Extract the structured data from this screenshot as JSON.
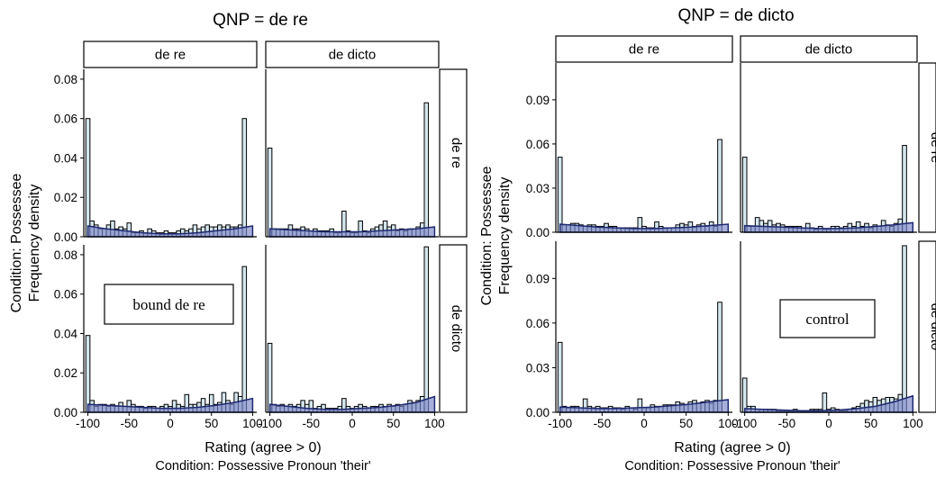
{
  "chart_data": [
    {
      "type": "bar",
      "title": "QNP = de re",
      "xlabel": "Rating (agree > 0)",
      "xlabel2": "Condition: Possessive Pronoun 'their'",
      "ylabel": "Condition: Possessee",
      "ylabel2": "Frequency density",
      "col_strips": [
        "de re",
        "de dicto"
      ],
      "row_strips": [
        "de re",
        "de dicto"
      ],
      "x_ticks": [
        "-100",
        "-50",
        "0",
        "50",
        "100"
      ],
      "x_tick_values": [
        -100,
        -50,
        0,
        50,
        100
      ],
      "xlim": [
        -105,
        105
      ],
      "y_ticks": [
        "0.00",
        "0.02",
        "0.04",
        "0.06",
        "0.08"
      ],
      "y_tick_values": [
        0,
        0.02,
        0.04,
        0.06,
        0.08
      ],
      "ylim": [
        0,
        0.085
      ],
      "grid": false,
      "annotation": {
        "text": "bound de re",
        "panel": "row 2, column 1"
      },
      "bin_width": 5,
      "panels": [
        {
          "row": "de re",
          "col": "de re",
          "values": [
            0.06,
            0.008,
            0.006,
            0.004,
            0.004,
            0.006,
            0.008,
            0.004,
            0.005,
            0.004,
            0.007,
            0.002,
            0.002,
            0.003,
            0.002,
            0.004,
            0.003,
            0.002,
            0.002,
            0.003,
            0.002,
            0.002,
            0.003,
            0.004,
            0.003,
            0.004,
            0.006,
            0.004,
            0.005,
            0.006,
            0.005,
            0.005,
            0.006,
            0.005,
            0.006,
            0.005,
            0.005,
            0.006,
            0.06
          ],
          "density": [
            0.0055,
            0.004,
            0.003,
            0.002,
            0.0015,
            0.0015,
            0.002,
            0.003,
            0.004,
            0.0055
          ]
        },
        {
          "row": "de re",
          "col": "de dicto",
          "values": [
            0.045,
            0.004,
            0.004,
            0.004,
            0.004,
            0.006,
            0.004,
            0.004,
            0.005,
            0.004,
            0.003,
            0.004,
            0.003,
            0.003,
            0.003,
            0.004,
            0.002,
            0.002,
            0.013,
            0.003,
            0.002,
            0.002,
            0.008,
            0.003,
            0.002,
            0.004,
            0.005,
            0.006,
            0.008,
            0.005,
            0.006,
            0.003,
            0.004,
            0.003,
            0.004,
            0.004,
            0.005,
            0.007,
            0.068
          ],
          "density": [
            0.004,
            0.0035,
            0.003,
            0.0025,
            0.0025,
            0.0025,
            0.003,
            0.0035,
            0.004,
            0.005
          ]
        },
        {
          "row": "de dicto",
          "col": "de re",
          "values": [
            0.039,
            0.006,
            0.003,
            0.004,
            0.004,
            0.003,
            0.004,
            0.003,
            0.005,
            0.003,
            0.006,
            0.004,
            0.003,
            0.003,
            0.002,
            0.003,
            0.003,
            0.002,
            0.003,
            0.004,
            0.003,
            0.006,
            0.004,
            0.003,
            0.009,
            0.004,
            0.004,
            0.005,
            0.007,
            0.004,
            0.009,
            0.004,
            0.005,
            0.01,
            0.006,
            0.004,
            0.01,
            0.008,
            0.074
          ],
          "density": [
            0.004,
            0.0035,
            0.003,
            0.0025,
            0.002,
            0.002,
            0.0025,
            0.0035,
            0.005,
            0.007
          ]
        },
        {
          "row": "de dicto",
          "col": "de dicto",
          "values": [
            0.035,
            0.004,
            0.003,
            0.004,
            0.003,
            0.004,
            0.003,
            0.004,
            0.006,
            0.004,
            0.006,
            0.002,
            0.003,
            0.004,
            0.002,
            0.002,
            0.002,
            0.003,
            0.007,
            0.003,
            0.002,
            0.003,
            0.004,
            0.003,
            0.002,
            0.003,
            0.003,
            0.004,
            0.003,
            0.004,
            0.003,
            0.004,
            0.003,
            0.004,
            0.006,
            0.005,
            0.006,
            0.008,
            0.084
          ],
          "density": [
            0.004,
            0.003,
            0.002,
            0.0015,
            0.0015,
            0.002,
            0.0025,
            0.0035,
            0.005,
            0.008
          ]
        }
      ]
    },
    {
      "type": "bar",
      "title": "QNP = de dicto",
      "xlabel": "Rating (agree > 0)",
      "xlabel2": "Condition: Possessive Pronoun 'their'",
      "ylabel": "Condition: Possessee",
      "ylabel2": "Frequency density",
      "col_strips": [
        "de re",
        "de dicto"
      ],
      "row_strips": [
        "de re",
        "de dicto"
      ],
      "x_ticks": [
        "-100",
        "-50",
        "0",
        "50",
        "100"
      ],
      "x_tick_values": [
        -100,
        -50,
        0,
        50,
        100
      ],
      "xlim": [
        -105,
        105
      ],
      "y_ticks": [
        "0.00",
        "0.03",
        "0.06",
        "0.09"
      ],
      "y_tick_values": [
        0,
        0.03,
        0.06,
        0.09
      ],
      "ylim": [
        0,
        0.115
      ],
      "grid": false,
      "annotation": {
        "text": "control",
        "panel": "row 2, column 2"
      },
      "bin_width": 5,
      "panels": [
        {
          "row": "de re",
          "col": "de re",
          "values": [
            0.051,
            0.005,
            0.005,
            0.006,
            0.006,
            0.005,
            0.004,
            0.005,
            0.005,
            0.004,
            0.004,
            0.006,
            0.004,
            0.004,
            0.003,
            0.003,
            0.003,
            0.003,
            0.003,
            0.01,
            0.004,
            0.003,
            0.003,
            0.007,
            0.004,
            0.003,
            0.003,
            0.003,
            0.005,
            0.006,
            0.005,
            0.007,
            0.004,
            0.005,
            0.006,
            0.004,
            0.007,
            0.004,
            0.063
          ],
          "density": [
            0.0055,
            0.0045,
            0.0035,
            0.003,
            0.0025,
            0.0025,
            0.003,
            0.0035,
            0.0045,
            0.0055
          ]
        },
        {
          "row": "de re",
          "col": "de dicto",
          "values": [
            0.051,
            0.004,
            0.004,
            0.01,
            0.008,
            0.006,
            0.008,
            0.005,
            0.006,
            0.005,
            0.004,
            0.004,
            0.004,
            0.004,
            0.003,
            0.006,
            0.003,
            0.002,
            0.004,
            0.002,
            0.002,
            0.004,
            0.004,
            0.003,
            0.004,
            0.006,
            0.004,
            0.007,
            0.004,
            0.006,
            0.003,
            0.005,
            0.004,
            0.008,
            0.005,
            0.004,
            0.006,
            0.009,
            0.059
          ],
          "density": [
            0.0045,
            0.004,
            0.0035,
            0.003,
            0.0025,
            0.0025,
            0.003,
            0.004,
            0.005,
            0.0065
          ]
        },
        {
          "row": "de dicto",
          "col": "de re",
          "values": [
            0.047,
            0.004,
            0.003,
            0.004,
            0.004,
            0.003,
            0.009,
            0.004,
            0.003,
            0.004,
            0.003,
            0.003,
            0.004,
            0.003,
            0.003,
            0.002,
            0.004,
            0.003,
            0.002,
            0.009,
            0.003,
            0.003,
            0.005,
            0.004,
            0.004,
            0.005,
            0.005,
            0.005,
            0.007,
            0.006,
            0.005,
            0.007,
            0.008,
            0.006,
            0.007,
            0.008,
            0.006,
            0.008,
            0.074
          ],
          "density": [
            0.0035,
            0.003,
            0.0025,
            0.0025,
            0.003,
            0.0035,
            0.0045,
            0.0055,
            0.007,
            0.0085
          ]
        },
        {
          "row": "de dicto",
          "col": "de dicto",
          "values": [
            0.023,
            0.004,
            0.004,
            0.002,
            0.002,
            0.002,
            0.002,
            0.002,
            0.001,
            0.001,
            0.001,
            0.001,
            0.002,
            0.001,
            0.001,
            0.001,
            0.002,
            0.002,
            0.002,
            0.013,
            0.002,
            0.003,
            0.002,
            0.001,
            0.001,
            0.002,
            0.003,
            0.004,
            0.006,
            0.008,
            0.007,
            0.01,
            0.008,
            0.009,
            0.01,
            0.01,
            0.009,
            0.012,
            0.112
          ],
          "density": [
            0.0025,
            0.002,
            0.0015,
            0.001,
            0.001,
            0.0015,
            0.0025,
            0.004,
            0.007,
            0.011
          ]
        }
      ]
    }
  ],
  "colors": {
    "bar_fill": "#d4e6ee",
    "bar_outline": "#000000",
    "density_fill": "#7a84c8",
    "density_line": "#1d2870",
    "strip_fill": "#ffffff"
  }
}
